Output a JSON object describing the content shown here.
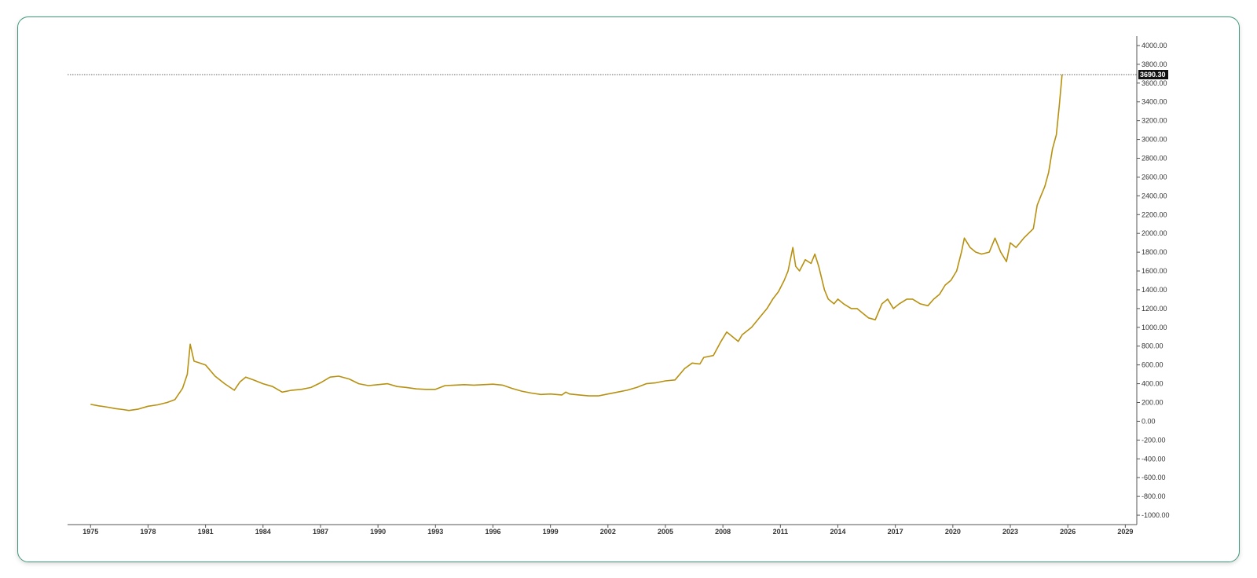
{
  "chart_data": {
    "type": "line",
    "title": "",
    "xlabel": "",
    "ylabel": "",
    "xlim": [
      1973.8,
      2029.6
    ],
    "ylim": [
      -1100,
      4100
    ],
    "grid": false,
    "y_ticks": [
      "4000.00",
      "3800.00",
      "3600.00",
      "3400.00",
      "3200.00",
      "3000.00",
      "2800.00",
      "2600.00",
      "2400.00",
      "2200.00",
      "2000.00",
      "1800.00",
      "1600.00",
      "1400.00",
      "1200.00",
      "1000.00",
      "800.00",
      "600.00",
      "400.00",
      "200.00",
      "0.00",
      "-200.00",
      "-400.00",
      "-600.00",
      "-800.00",
      "-1000.00"
    ],
    "x_ticks": [
      "1975",
      "1978",
      "1981",
      "1984",
      "1987",
      "1990",
      "1993",
      "1996",
      "1999",
      "2002",
      "2005",
      "2008",
      "2011",
      "2014",
      "2017",
      "2020",
      "2023",
      "2026",
      "2029"
    ],
    "current_price": 3690.3,
    "current_price_label": "3690.30",
    "line_color": "#b8900f",
    "series": [
      {
        "x": [
          1975.0,
          1975.4,
          1975.9,
          1976.3,
          1976.7,
          1977.0,
          1977.5,
          1978.0,
          1978.5,
          1979.0,
          1979.4,
          1979.8,
          1980.05,
          1980.2,
          1980.4,
          1980.7,
          1981.0,
          1981.5,
          1982.0,
          1982.5,
          1982.8,
          1983.1,
          1983.5,
          1984.0,
          1984.5,
          1985.0,
          1985.5,
          1986.0,
          1986.5,
          1987.0,
          1987.5,
          1987.95,
          1988.5,
          1989.0,
          1989.5,
          1990.0,
          1990.5,
          1991.0,
          1991.5,
          1992.0,
          1992.5,
          1993.0,
          1993.5,
          1994.0,
          1994.5,
          1995.0,
          1995.5,
          1996.0,
          1996.5,
          1997.0,
          1997.5,
          1998.0,
          1998.5,
          1999.0,
          1999.6,
          1999.8,
          2000.0,
          2000.5,
          2001.0,
          2001.5,
          2002.0,
          2002.5,
          2003.0,
          2003.5,
          2004.0,
          2004.5,
          2005.0,
          2005.5,
          2006.0,
          2006.4,
          2006.8,
          2007.0,
          2007.5,
          2007.9,
          2008.2,
          2008.5,
          2008.8,
          2009.0,
          2009.5,
          2009.9,
          2010.3,
          2010.6,
          2010.9,
          2011.2,
          2011.4,
          2011.65,
          2011.8,
          2012.0,
          2012.3,
          2012.6,
          2012.8,
          2013.0,
          2013.3,
          2013.5,
          2013.8,
          2014.0,
          2014.3,
          2014.7,
          2015.0,
          2015.3,
          2015.6,
          2015.95,
          2016.3,
          2016.6,
          2016.9,
          2017.2,
          2017.6,
          2017.9,
          2018.3,
          2018.7,
          2019.0,
          2019.3,
          2019.6,
          2019.9,
          2020.2,
          2020.45,
          2020.6,
          2020.9,
          2021.2,
          2021.5,
          2021.9,
          2022.2,
          2022.5,
          2022.8,
          2023.0,
          2023.3,
          2023.7,
          2023.95,
          2024.2,
          2024.4,
          2024.6,
          2024.8,
          2025.0,
          2025.2,
          2025.4,
          2025.55,
          2025.7
        ],
        "y": [
          180,
          165,
          150,
          135,
          125,
          115,
          130,
          160,
          175,
          200,
          230,
          350,
          500,
          820,
          640,
          620,
          600,
          480,
          400,
          330,
          420,
          470,
          440,
          400,
          370,
          310,
          330,
          340,
          360,
          410,
          470,
          480,
          450,
          400,
          380,
          390,
          400,
          370,
          360,
          345,
          340,
          340,
          380,
          385,
          390,
          385,
          390,
          395,
          385,
          350,
          320,
          300,
          285,
          290,
          280,
          310,
          290,
          280,
          270,
          270,
          290,
          310,
          330,
          360,
          400,
          410,
          430,
          440,
          560,
          620,
          610,
          680,
          700,
          850,
          950,
          900,
          850,
          920,
          1000,
          1100,
          1200,
          1300,
          1380,
          1500,
          1600,
          1850,
          1650,
          1600,
          1720,
          1680,
          1780,
          1650,
          1400,
          1300,
          1250,
          1300,
          1250,
          1200,
          1200,
          1150,
          1100,
          1080,
          1250,
          1300,
          1200,
          1250,
          1300,
          1300,
          1250,
          1230,
          1300,
          1350,
          1450,
          1500,
          1600,
          1800,
          1950,
          1850,
          1800,
          1780,
          1800,
          1950,
          1800,
          1700,
          1900,
          1850,
          1950,
          2000,
          2050,
          2300,
          2400,
          2500,
          2650,
          2900,
          3050,
          3350,
          3690.3
        ]
      }
    ]
  }
}
